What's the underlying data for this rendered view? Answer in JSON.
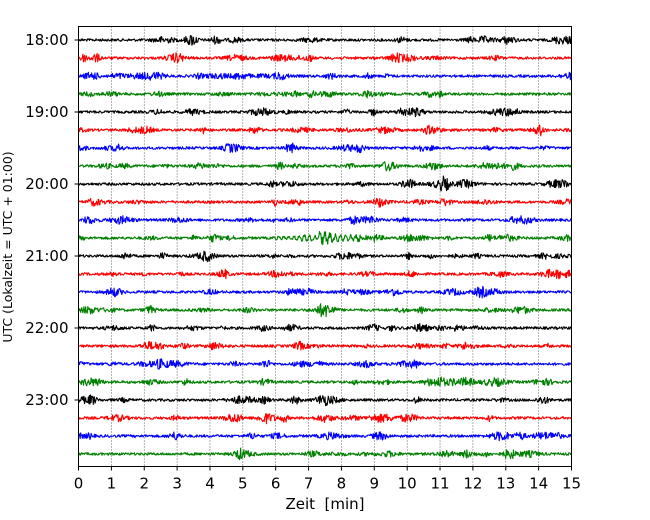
{
  "chart_data": {
    "type": "line",
    "title": "",
    "xlabel": "Zeit  [min]",
    "ylabel": "UTC (Lokalzeit = UTC + 01:00)",
    "xlim": [
      0,
      15
    ],
    "x_ticks": [
      0,
      1,
      2,
      3,
      4,
      5,
      6,
      7,
      8,
      9,
      10,
      11,
      12,
      13,
      14,
      15
    ],
    "y_tick_labels": [
      "18:00",
      "19:00",
      "20:00",
      "21:00",
      "22:00",
      "23:00"
    ],
    "grid": "vertical dotted",
    "trace_colors": [
      "#000000",
      "#ff0000",
      "#0000ff",
      "#008000"
    ],
    "traces": [
      {
        "start": "18:00",
        "color": "#000000"
      },
      {
        "start": "18:15",
        "color": "#ff0000"
      },
      {
        "start": "18:30",
        "color": "#0000ff"
      },
      {
        "start": "18:45",
        "color": "#008000"
      },
      {
        "start": "19:00",
        "color": "#000000"
      },
      {
        "start": "19:15",
        "color": "#ff0000"
      },
      {
        "start": "19:30",
        "color": "#0000ff"
      },
      {
        "start": "19:45",
        "color": "#008000"
      },
      {
        "start": "20:00",
        "color": "#000000"
      },
      {
        "start": "20:15",
        "color": "#ff0000"
      },
      {
        "start": "20:30",
        "color": "#0000ff"
      },
      {
        "start": "20:45",
        "color": "#008000"
      },
      {
        "start": "21:00",
        "color": "#000000"
      },
      {
        "start": "21:15",
        "color": "#ff0000"
      },
      {
        "start": "21:30",
        "color": "#0000ff"
      },
      {
        "start": "21:45",
        "color": "#008000"
      },
      {
        "start": "22:00",
        "color": "#000000"
      },
      {
        "start": "22:15",
        "color": "#ff0000"
      },
      {
        "start": "22:30",
        "color": "#0000ff"
      },
      {
        "start": "22:45",
        "color": "#008000"
      },
      {
        "start": "23:00",
        "color": "#000000"
      },
      {
        "start": "23:15",
        "color": "#ff0000"
      },
      {
        "start": "23:30",
        "color": "#0000ff"
      },
      {
        "start": "23:45",
        "color": "#008000"
      }
    ],
    "events": [
      {
        "trace": "20:45",
        "from_min": 5.8,
        "to_min": 9.2,
        "note": "wave-like oscillation"
      }
    ]
  }
}
